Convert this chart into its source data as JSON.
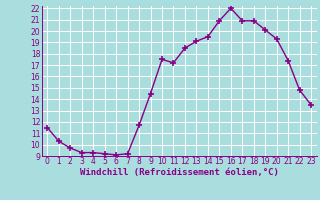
{
  "x": [
    0,
    1,
    2,
    3,
    4,
    5,
    6,
    7,
    8,
    9,
    10,
    11,
    12,
    13,
    14,
    15,
    16,
    17,
    18,
    19,
    20,
    21,
    22,
    23
  ],
  "y": [
    11.5,
    10.3,
    9.7,
    9.3,
    9.3,
    9.2,
    9.1,
    9.2,
    11.7,
    14.5,
    17.5,
    17.2,
    18.5,
    19.1,
    19.5,
    20.9,
    22.0,
    20.9,
    20.9,
    20.1,
    19.3,
    17.4,
    14.8,
    13.5
  ],
  "color": "#880088",
  "bg_color": "#aadddd",
  "grid_color": "#cceeee",
  "xlabel": "Windchill (Refroidissement éolien,°C)",
  "ylim": [
    9,
    22
  ],
  "xlim": [
    -0.5,
    23.5
  ],
  "yticks": [
    9,
    10,
    11,
    12,
    13,
    14,
    15,
    16,
    17,
    18,
    19,
    20,
    21,
    22
  ],
  "xticks": [
    0,
    1,
    2,
    3,
    4,
    5,
    6,
    7,
    8,
    9,
    10,
    11,
    12,
    13,
    14,
    15,
    16,
    17,
    18,
    19,
    20,
    21,
    22,
    23
  ],
  "marker": "+",
  "linewidth": 1.0,
  "markersize": 4,
  "font_color": "#880088",
  "xlabel_fontsize": 6.5,
  "tick_fontsize": 5.5
}
